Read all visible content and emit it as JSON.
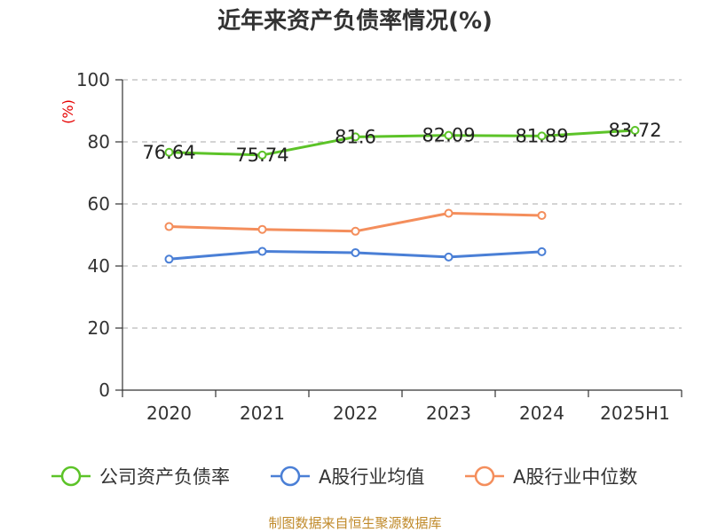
{
  "chart_data": {
    "type": "line",
    "title": "近年来资产负债率情况(%)",
    "ylabel": "(%)",
    "ylim": [
      0,
      100
    ],
    "yticks": [
      0,
      20,
      40,
      60,
      80,
      100
    ],
    "grid": true,
    "legend_position": "bottom",
    "categories": [
      "2020",
      "2021",
      "2022",
      "2023",
      "2024",
      "2025H1"
    ],
    "series": [
      {
        "name": "公司资产负债率",
        "color": "#5cc328",
        "values": [
          76.64,
          75.74,
          81.6,
          82.09,
          81.89,
          83.72
        ],
        "labels": [
          "76.64",
          "75.74",
          "81.6",
          "82.09",
          "81.89",
          "83.72"
        ]
      },
      {
        "name": "A股行业均值",
        "color": "#4a7fd6",
        "values": [
          42.2,
          44.7,
          44.3,
          42.9,
          44.6,
          null
        ]
      },
      {
        "name": "A股行业中位数",
        "color": "#f48e5c",
        "values": [
          52.7,
          51.8,
          51.2,
          57.0,
          56.3,
          null
        ]
      }
    ],
    "source": "制图数据来自恒生聚源数据库"
  }
}
